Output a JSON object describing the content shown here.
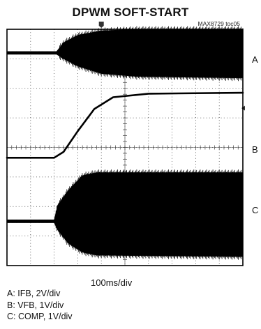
{
  "header": {
    "title": "DPWM SOFT-START",
    "figure_id": "MAX8729 toc05"
  },
  "colors": {
    "trace": "#000000",
    "grid": "#444444",
    "frame": "#000000"
  },
  "chart_data": {
    "type": "line",
    "title": "DPWM SOFT-START",
    "divisions": {
      "horizontal": 10,
      "vertical": 8
    },
    "timebase": "100ms/div",
    "x_range_ms": [
      0,
      1000
    ],
    "channels": [
      {
        "id": "A",
        "name": "IFB",
        "scale": "2V/div",
        "kind": "envelope",
        "baseline_div": 7.2,
        "envelope_points": [
          {
            "t_ms": 0,
            "low_div": 7.15,
            "high_div": 7.25
          },
          {
            "t_ms": 210,
            "low_div": 7.15,
            "high_div": 7.25
          },
          {
            "t_ms": 240,
            "low_div": 7.0,
            "high_div": 7.55
          },
          {
            "t_ms": 300,
            "low_div": 6.75,
            "high_div": 7.8
          },
          {
            "t_ms": 400,
            "low_div": 6.5,
            "high_div": 7.95
          },
          {
            "t_ms": 550,
            "low_div": 6.4,
            "high_div": 8.0
          },
          {
            "t_ms": 1000,
            "low_div": 6.35,
            "high_div": 8.0
          }
        ]
      },
      {
        "id": "B",
        "name": "VFB",
        "scale": "1V/div",
        "kind": "line",
        "points": [
          {
            "t_ms": 0,
            "div": 3.65
          },
          {
            "t_ms": 200,
            "div": 3.65
          },
          {
            "t_ms": 240,
            "div": 3.85
          },
          {
            "t_ms": 300,
            "div": 4.55
          },
          {
            "t_ms": 370,
            "div": 5.3
          },
          {
            "t_ms": 450,
            "div": 5.7
          },
          {
            "t_ms": 600,
            "div": 5.82
          },
          {
            "t_ms": 1000,
            "div": 5.85
          }
        ]
      },
      {
        "id": "C",
        "name": "COMP",
        "scale": "1V/div",
        "kind": "envelope",
        "baseline_div": 1.5,
        "envelope_points": [
          {
            "t_ms": 0,
            "low_div": 1.45,
            "high_div": 1.55
          },
          {
            "t_ms": 200,
            "low_div": 1.45,
            "high_div": 1.55
          },
          {
            "t_ms": 215,
            "low_div": 1.2,
            "high_div": 2.05
          },
          {
            "t_ms": 260,
            "low_div": 0.75,
            "high_div": 2.55
          },
          {
            "t_ms": 320,
            "low_div": 0.45,
            "high_div": 3.05
          },
          {
            "t_ms": 380,
            "low_div": 0.35,
            "high_div": 3.15
          },
          {
            "t_ms": 1000,
            "low_div": 0.3,
            "high_div": 3.15
          }
        ]
      }
    ]
  },
  "channel_labels": [
    "A",
    "B",
    "C"
  ],
  "axis": {
    "timebase_label": "100ms/div"
  },
  "legend": [
    {
      "text": "A: IFB, 2V/div"
    },
    {
      "text": "B: VFB, 1V/div"
    },
    {
      "text": "C: COMP, 1V/div"
    }
  ]
}
